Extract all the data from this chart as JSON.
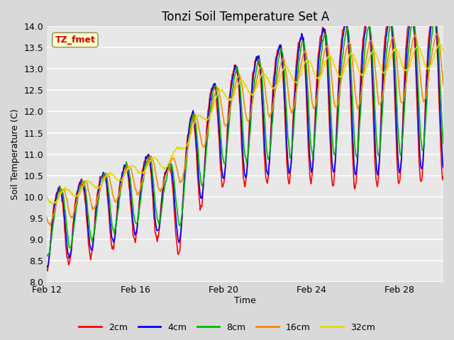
{
  "title": "Tonzi Soil Temperature Set A",
  "xlabel": "Time",
  "ylabel": "Soil Temperature (C)",
  "ylim": [
    8.0,
    14.0
  ],
  "yticks": [
    8.0,
    8.5,
    9.0,
    9.5,
    10.0,
    10.5,
    11.0,
    11.5,
    12.0,
    12.5,
    13.0,
    13.5,
    14.0
  ],
  "xtick_labels": [
    "Feb 12",
    "Feb 16",
    "Feb 20",
    "Feb 24",
    "Feb 28"
  ],
  "xtick_positions": [
    0,
    4,
    8,
    12,
    16
  ],
  "annotation_text": "TZ_fmet",
  "annotation_color": "#cc0000",
  "annotation_bg": "#ffffcc",
  "annotation_border": "#999966",
  "colors": {
    "2cm": "#ff0000",
    "4cm": "#0000ff",
    "8cm": "#00bb00",
    "16cm": "#ff8800",
    "32cm": "#dddd00"
  },
  "lw": 1.2,
  "bg_color": "#d9d9d9",
  "plot_bg": "#e8e8e8",
  "title_fontsize": 12,
  "axis_label_fontsize": 9,
  "tick_fontsize": 9,
  "legend_fontsize": 9,
  "total_days": 18,
  "n_points": 720
}
